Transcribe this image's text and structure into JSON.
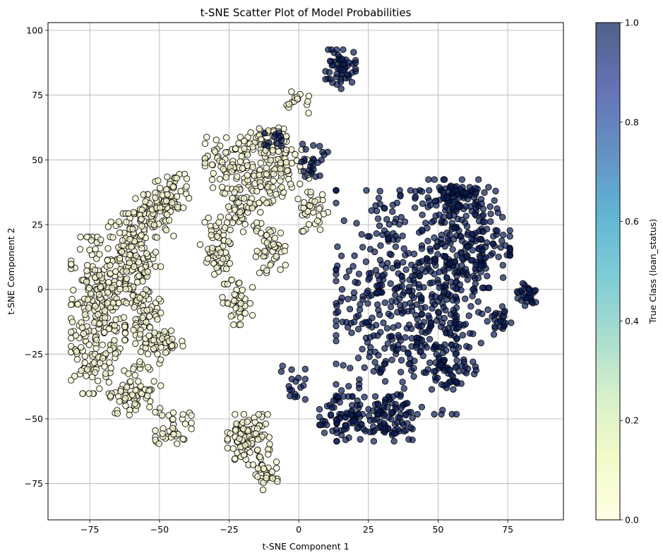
{
  "chart_data": {
    "type": "scatter",
    "title": "t-SNE Scatter Plot of Model Probabilities",
    "xlabel": "t-SNE Component 1",
    "ylabel": "t-SNE Component 2",
    "xlim": [
      -90,
      95
    ],
    "ylim": [
      -89,
      103
    ],
    "xticks": [
      -75,
      -50,
      -25,
      0,
      25,
      50,
      75
    ],
    "yticks": [
      -75,
      -50,
      -25,
      0,
      25,
      50,
      75,
      100
    ],
    "xtick_labels": [
      "−75",
      "−50",
      "−25",
      "0",
      "25",
      "50",
      "75"
    ],
    "ytick_labels": [
      "−75",
      "−50",
      "−25",
      "0",
      "25",
      "50",
      "75",
      "100"
    ],
    "grid": true,
    "colorbar": {
      "label": "True Class (loan_status)",
      "range": [
        0,
        1
      ],
      "ticks": [
        "0.0",
        "0.2",
        "0.4",
        "0.6",
        "0.8",
        "1.0"
      ],
      "colormap": "YlGnBu",
      "stops": [
        "#ffffd9",
        "#edf8b1",
        "#c7e9b4",
        "#7fcdbb",
        "#41b6c4",
        "#1d91c0",
        "#225ea8",
        "#253494",
        "#081d58"
      ],
      "alpha": 0.7
    },
    "marker_edge_color": "#000000",
    "class_colors": {
      "0": "#ffffd9",
      "1": "#081d58"
    },
    "clusters": [
      {
        "class": 0,
        "cx": -72,
        "cy": -10,
        "rx": 9,
        "ry": 28,
        "n": 260
      },
      {
        "class": 0,
        "cx": -60,
        "cy": 12,
        "rx": 8,
        "ry": 16,
        "n": 130
      },
      {
        "class": 0,
        "cx": -52,
        "cy": 28,
        "rx": 8,
        "ry": 8,
        "n": 70
      },
      {
        "class": 0,
        "cx": -45,
        "cy": 38,
        "rx": 6,
        "ry": 6,
        "n": 45
      },
      {
        "class": 0,
        "cx": -56,
        "cy": -15,
        "rx": 6,
        "ry": 22,
        "n": 110
      },
      {
        "class": 0,
        "cx": -47,
        "cy": -20,
        "rx": 5,
        "ry": 5,
        "n": 30
      },
      {
        "class": 0,
        "cx": -60,
        "cy": -42,
        "rx": 7,
        "ry": 6,
        "n": 45
      },
      {
        "class": 0,
        "cx": -45,
        "cy": -52,
        "rx": 6,
        "ry": 7,
        "n": 40
      },
      {
        "class": 0,
        "cx": -30,
        "cy": 15,
        "rx": 5,
        "ry": 12,
        "n": 60
      },
      {
        "class": 0,
        "cx": -25,
        "cy": 48,
        "rx": 8,
        "ry": 10,
        "n": 80
      },
      {
        "class": 0,
        "cx": -20,
        "cy": 30,
        "rx": 6,
        "ry": 8,
        "n": 50
      },
      {
        "class": 0,
        "cx": -12,
        "cy": 42,
        "rx": 6,
        "ry": 8,
        "n": 50
      },
      {
        "class": 0,
        "cx": -22,
        "cy": -5,
        "rx": 5,
        "ry": 8,
        "n": 40
      },
      {
        "class": 0,
        "cx": -10,
        "cy": 15,
        "rx": 5,
        "ry": 8,
        "n": 45
      },
      {
        "class": 0,
        "cx": -5,
        "cy": 48,
        "rx": 8,
        "ry": 8,
        "n": 55
      },
      {
        "class": 0,
        "cx": 5,
        "cy": 30,
        "rx": 5,
        "ry": 7,
        "n": 35
      },
      {
        "class": 0,
        "cx": -12,
        "cy": 58,
        "rx": 7,
        "ry": 5,
        "n": 45
      },
      {
        "class": 0,
        "cx": 0,
        "cy": 72,
        "rx": 4,
        "ry": 4,
        "n": 15
      },
      {
        "class": 0,
        "cx": -18,
        "cy": -58,
        "rx": 7,
        "ry": 9,
        "n": 95
      },
      {
        "class": 0,
        "cx": -12,
        "cy": -72,
        "rx": 4,
        "ry": 5,
        "n": 30
      },
      {
        "class": 1,
        "cx": 15,
        "cy": 85,
        "rx": 5,
        "ry": 7,
        "n": 55
      },
      {
        "class": 1,
        "cx": 5,
        "cy": 50,
        "rx": 5,
        "ry": 6,
        "n": 25
      },
      {
        "class": 1,
        "cx": -8,
        "cy": 58,
        "rx": 4,
        "ry": 3,
        "n": 12
      },
      {
        "class": 1,
        "cx": -2,
        "cy": -36,
        "rx": 4,
        "ry": 6,
        "n": 18
      },
      {
        "class": 1,
        "cx": 35,
        "cy": -5,
        "rx": 20,
        "ry": 40,
        "n": 420
      },
      {
        "class": 1,
        "cx": 55,
        "cy": 10,
        "rx": 10,
        "ry": 30,
        "n": 190
      },
      {
        "class": 1,
        "cx": 65,
        "cy": 20,
        "rx": 10,
        "ry": 18,
        "n": 110
      },
      {
        "class": 1,
        "cx": 55,
        "cy": 35,
        "rx": 8,
        "ry": 6,
        "n": 60
      },
      {
        "class": 1,
        "cx": 82,
        "cy": -2,
        "rx": 4,
        "ry": 4,
        "n": 30
      },
      {
        "class": 1,
        "cx": 72,
        "cy": -12,
        "rx": 4,
        "ry": 5,
        "n": 25
      },
      {
        "class": 1,
        "cx": 30,
        "cy": -50,
        "rx": 10,
        "ry": 8,
        "n": 95
      },
      {
        "class": 1,
        "cx": 15,
        "cy": -50,
        "rx": 7,
        "ry": 8,
        "n": 55
      },
      {
        "class": 1,
        "cx": 55,
        "cy": -30,
        "rx": 8,
        "ry": 8,
        "n": 60
      }
    ]
  }
}
